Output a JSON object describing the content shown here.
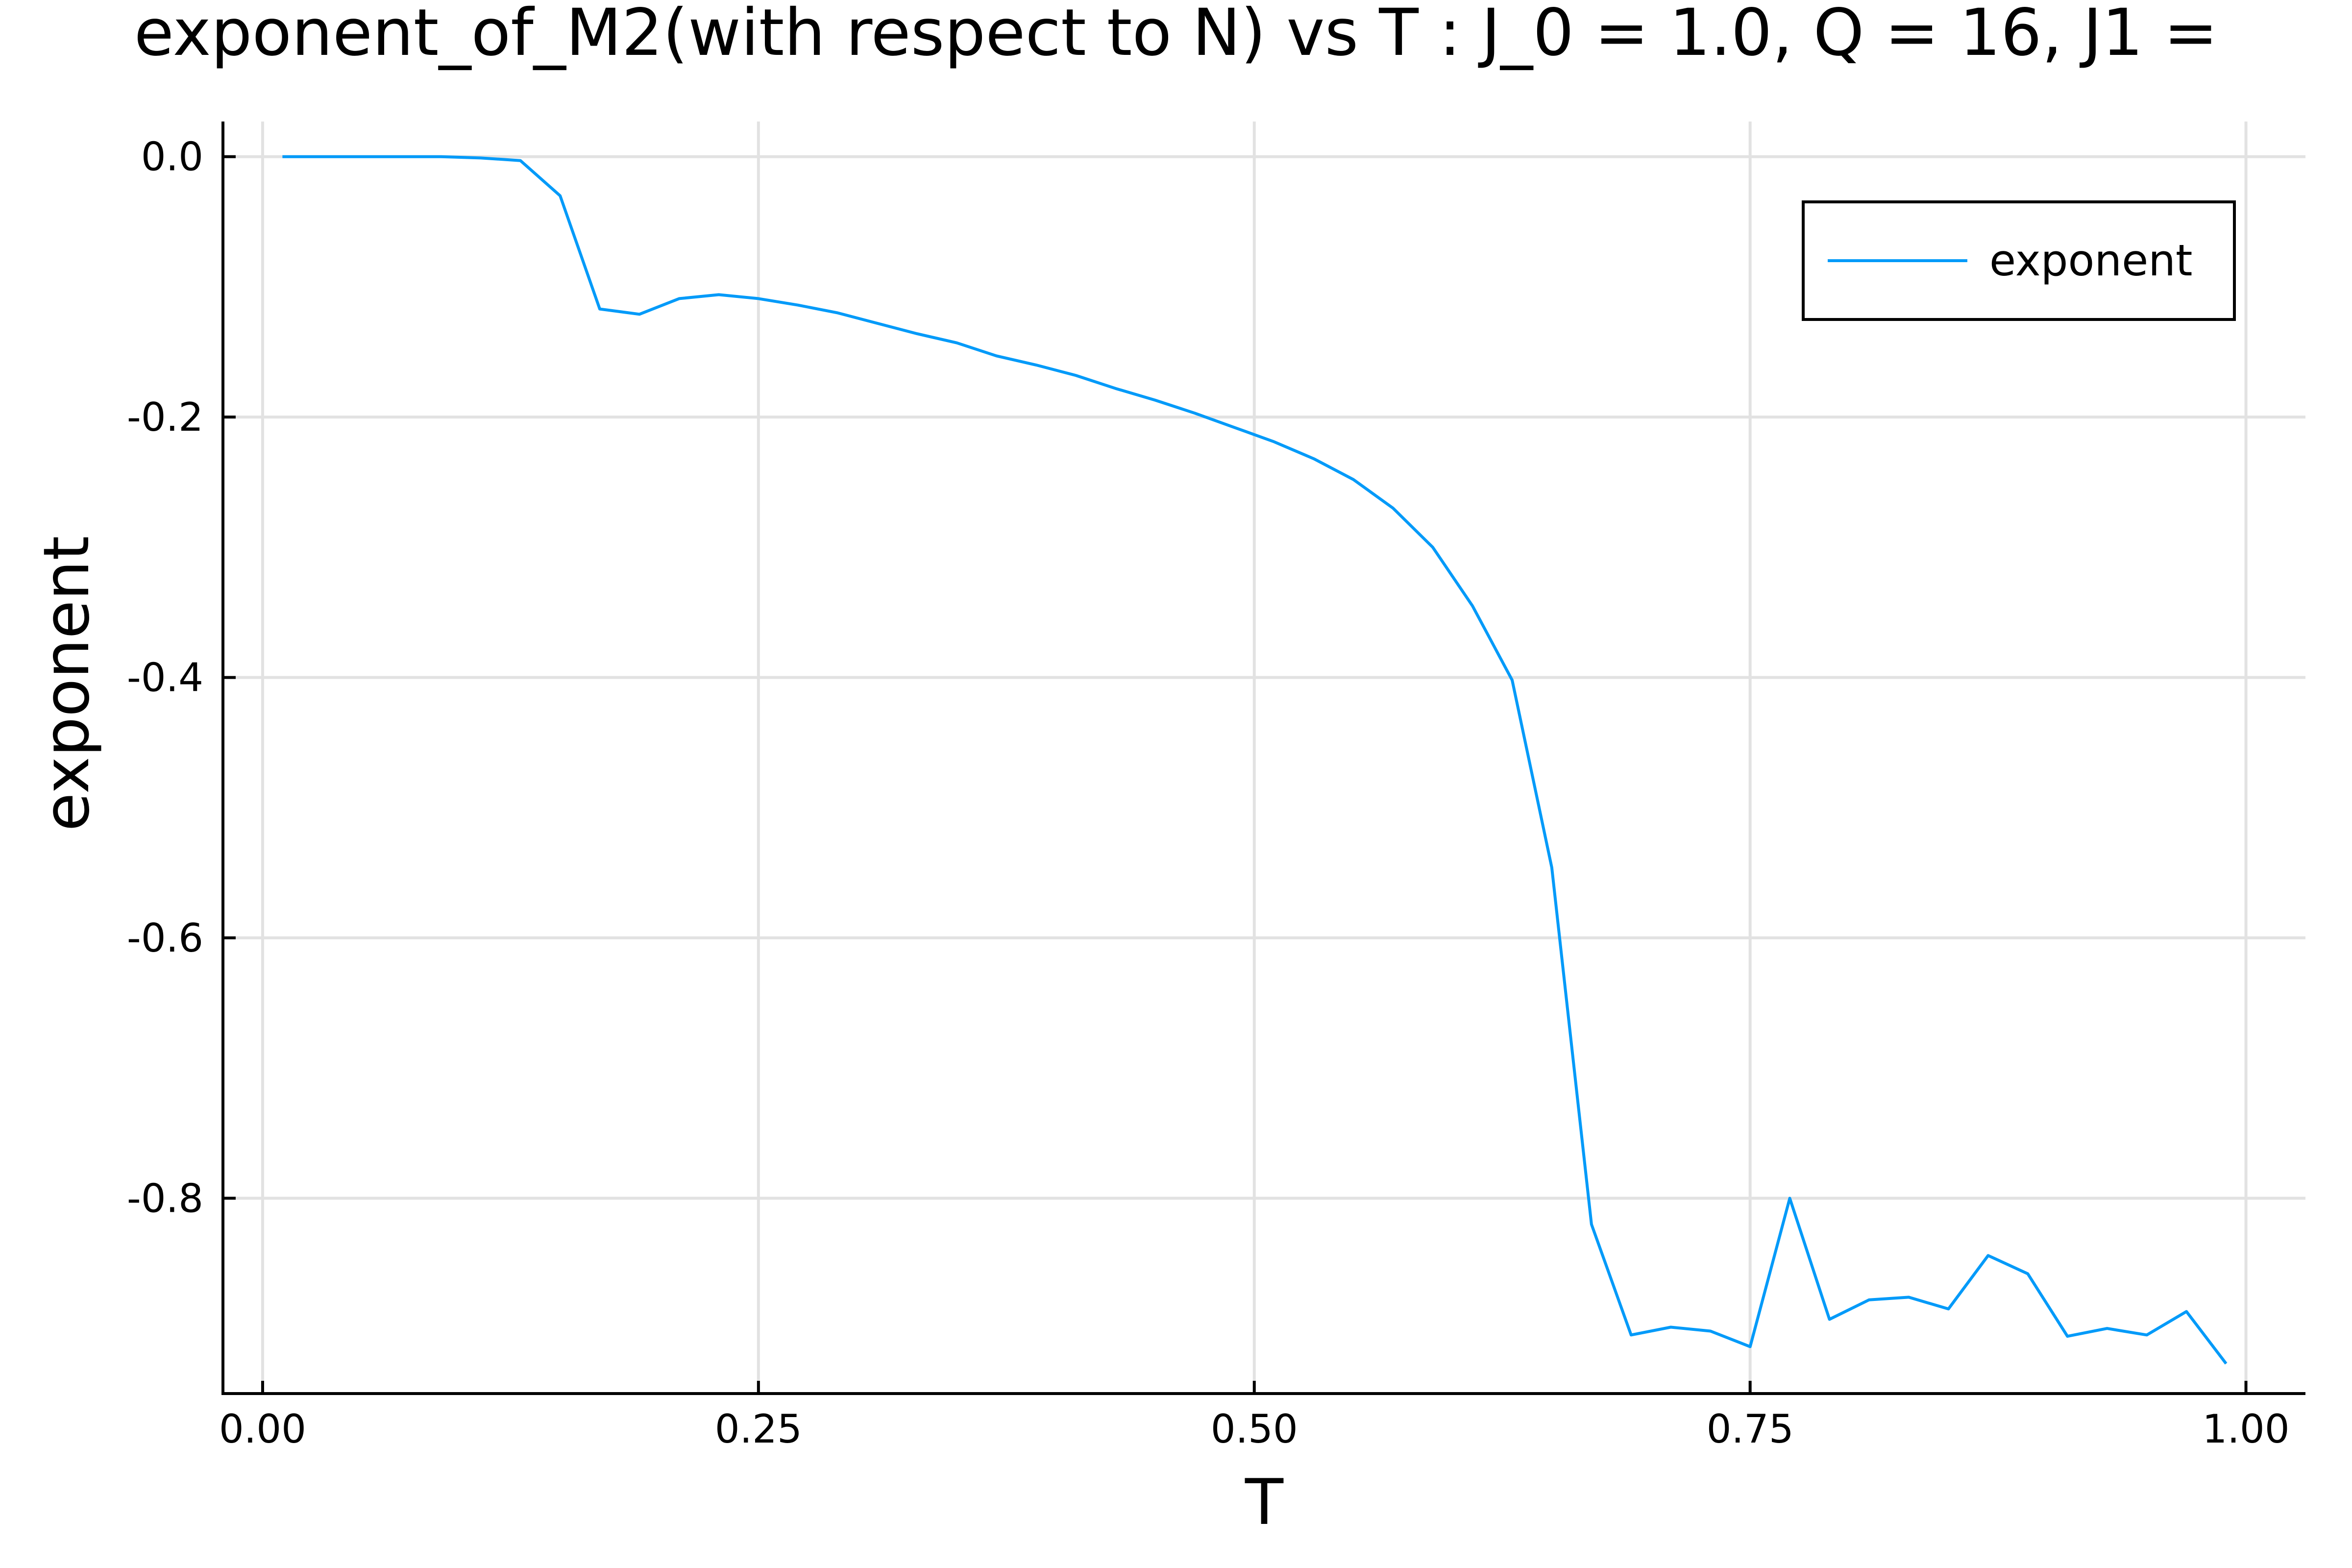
{
  "chart_data": {
    "type": "line",
    "title": "exponent_of_M2(with respect to N) vs T : J_0 = 1.0, Q = 16, J1 =",
    "xlabel": "T",
    "ylabel": "exponent",
    "xlim": [
      -0.02,
      1.03
    ],
    "ylim": [
      -0.95,
      0.027
    ],
    "x_ticks": [
      0.0,
      0.25,
      0.5,
      0.75,
      1.0
    ],
    "x_tick_labels": [
      "0.00",
      "0.25",
      "0.50",
      "0.75",
      "1.00"
    ],
    "y_ticks": [
      0.0,
      -0.2,
      -0.4,
      -0.6,
      -0.8
    ],
    "y_tick_labels": [
      "0.0",
      "-0.2",
      "-0.4",
      "-0.6",
      "-0.8"
    ],
    "grid": true,
    "legend_position": "top-right",
    "series": [
      {
        "name": "exponent",
        "color": "#009af9",
        "x": [
          0.01,
          0.03,
          0.05,
          0.07,
          0.09,
          0.11,
          0.13,
          0.15,
          0.17,
          0.19,
          0.21,
          0.23,
          0.25,
          0.27,
          0.29,
          0.31,
          0.33,
          0.35,
          0.37,
          0.39,
          0.41,
          0.43,
          0.45,
          0.47,
          0.49,
          0.51,
          0.53,
          0.55,
          0.57,
          0.59,
          0.61,
          0.63,
          0.65,
          0.67,
          0.69,
          0.71,
          0.73,
          0.75,
          0.77,
          0.79,
          0.81,
          0.83,
          0.85,
          0.87,
          0.89,
          0.91,
          0.93,
          0.95,
          0.97,
          0.99
        ],
        "y": [
          0.0,
          0.0,
          0.0,
          0.0,
          0.0,
          -0.001,
          -0.003,
          -0.03,
          -0.117,
          -0.121,
          -0.109,
          -0.106,
          -0.109,
          -0.114,
          -0.12,
          -0.128,
          -0.136,
          -0.143,
          -0.153,
          -0.16,
          -0.168,
          -0.178,
          -0.187,
          -0.197,
          -0.208,
          -0.219,
          -0.232,
          -0.248,
          -0.27,
          -0.3,
          -0.345,
          -0.402,
          -0.546,
          -0.82,
          -0.905,
          -0.899,
          -0.902,
          -0.914,
          -0.8,
          -0.893,
          -0.878,
          -0.876,
          -0.885,
          -0.844,
          -0.858,
          -0.906,
          -0.9,
          -0.905,
          -0.887,
          -0.927
        ]
      }
    ]
  }
}
